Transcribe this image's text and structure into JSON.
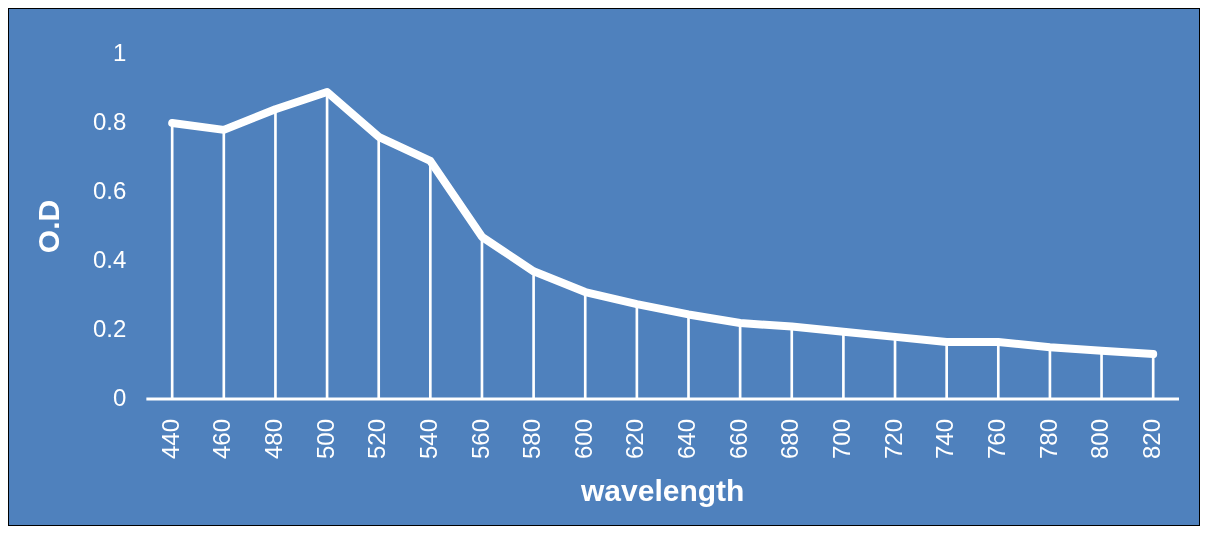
{
  "chart_data": {
    "type": "line",
    "xlabel": "wavelength",
    "ylabel": "O.D",
    "categories": [
      "440",
      "460",
      "480",
      "500",
      "520",
      "540",
      "560",
      "580",
      "600",
      "620",
      "640",
      "660",
      "680",
      "700",
      "720",
      "740",
      "760",
      "780",
      "800",
      "820"
    ],
    "series": [
      {
        "color": "#ffffff",
        "values": [
          0.8,
          0.78,
          0.84,
          0.89,
          0.76,
          0.69,
          0.47,
          0.37,
          0.31,
          0.275,
          0.245,
          0.22,
          0.21,
          0.195,
          0.18,
          0.165,
          0.165,
          0.15,
          0.14,
          0.13
        ]
      },
      {
        "type": "bar",
        "color": "#ffffff",
        "values": [
          0.8,
          0.78,
          0.84,
          0.89,
          0.76,
          0.69,
          0.47,
          0.37,
          0.31,
          0.275,
          0.245,
          0.22,
          0.21,
          0.195,
          0.18,
          0.165,
          0.165,
          0.15,
          0.14,
          0.13
        ]
      }
    ],
    "ylim": [
      0,
      1
    ],
    "yticks": [
      0,
      0.2,
      0.4,
      0.6,
      0.8,
      1
    ],
    "grid": false,
    "legend": false,
    "marker": "none",
    "line_style": "solid"
  }
}
